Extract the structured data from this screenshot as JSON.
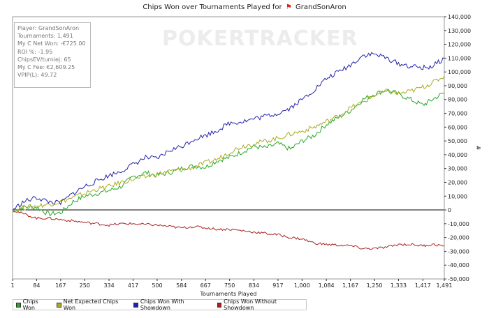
{
  "title": {
    "prefix": "Chips Won over Tournaments Played for",
    "flag": "⚑",
    "player": "GrandSonAron"
  },
  "watermark": "POKERTRACKER",
  "stats": {
    "player": "Player: GrandSonAron",
    "tournaments": "Tournaments: 1,491",
    "net_won": "My C Net Won: -€725.00",
    "roi": "ROI %: -1.95",
    "chips_ev": "ChipsEV/turniej: 65",
    "fee": "My C Fee: €2,609.25",
    "vpip": "VPIP(L): 49.72"
  },
  "legend": [
    {
      "label": "Chips Won",
      "color": "#22aa22"
    },
    {
      "label": "Net Expected Chips Won",
      "color": "#aaaa22"
    },
    {
      "label": "Chips Won With Showdown",
      "color": "#2222aa"
    },
    {
      "label": "Chips Won Without Showdown",
      "color": "#aa2222"
    }
  ],
  "chart_data": {
    "type": "line",
    "title": "Chips Won over Tournaments Played for GrandSonAron",
    "xlabel": "Tournaments Played",
    "ylabel": "#",
    "xlim": [
      1,
      1491
    ],
    "ylim": [
      -50000,
      140000
    ],
    "x_ticks": [
      1,
      84,
      167,
      250,
      334,
      417,
      500,
      584,
      667,
      750,
      834,
      917,
      1000,
      1084,
      1167,
      1250,
      1333,
      1417,
      1491
    ],
    "x_tick_labels": [
      "1",
      "84",
      "167",
      "250",
      "334",
      "417",
      "500",
      "584",
      "667",
      "750",
      "834",
      "917",
      "1,000",
      "1,084",
      "1,167",
      "1,250",
      "1,333",
      "1,417",
      "1,491"
    ],
    "y_ticks": [
      -50000,
      -40000,
      -30000,
      -20000,
      -10000,
      0,
      10000,
      20000,
      30000,
      40000,
      50000,
      60000,
      70000,
      80000,
      90000,
      100000,
      110000,
      120000,
      130000,
      140000
    ],
    "y_tick_labels": [
      "-50,000",
      "-40,000",
      "-30,000",
      "-20,000",
      "-10,000",
      "0",
      "10,000",
      "20,000",
      "30,000",
      "40,000",
      "50,000",
      "60,000",
      "70,000",
      "80,000",
      "90,000",
      "100,000",
      "110,000",
      "120,000",
      "130,000",
      "140,000"
    ],
    "grid": false,
    "legend_position": "bottom",
    "x": [
      1,
      40,
      84,
      125,
      167,
      210,
      250,
      292,
      334,
      375,
      417,
      460,
      500,
      542,
      584,
      625,
      667,
      710,
      750,
      792,
      834,
      875,
      917,
      960,
      1000,
      1042,
      1084,
      1125,
      1167,
      1210,
      1250,
      1292,
      1333,
      1375,
      1417,
      1450,
      1491
    ],
    "series": [
      {
        "name": "Chips Won",
        "color": "#22aa22",
        "values": [
          0,
          2000,
          2000,
          -3000,
          -2000,
          6000,
          10000,
          12000,
          14000,
          17000,
          24000,
          27000,
          25000,
          27000,
          30000,
          32000,
          31000,
          36000,
          38000,
          42000,
          46000,
          45000,
          48000,
          44000,
          50000,
          54000,
          62000,
          67000,
          72000,
          80000,
          84000,
          87000,
          84000,
          80000,
          76000,
          80000,
          85000
        ]
      },
      {
        "name": "Net Expected Chips Won",
        "color": "#aaaa22",
        "values": [
          0,
          1500,
          3000,
          4000,
          6000,
          9000,
          12000,
          15000,
          17000,
          20000,
          22000,
          24000,
          26000,
          28000,
          29000,
          31000,
          34000,
          37000,
          42000,
          46000,
          48000,
          50000,
          52000,
          55000,
          57000,
          60000,
          64000,
          68000,
          74000,
          78000,
          83000,
          86000,
          84000,
          86000,
          89000,
          92000,
          97000
        ]
      },
      {
        "name": "Chips Won With Showdown",
        "color": "#2222aa",
        "values": [
          0,
          6000,
          9000,
          6000,
          5000,
          12000,
          17000,
          21000,
          25000,
          28000,
          33000,
          38000,
          37000,
          43000,
          46000,
          51000,
          54000,
          58000,
          63000,
          64000,
          66000,
          68000,
          70000,
          74000,
          80000,
          87000,
          95000,
          100000,
          105000,
          112000,
          113000,
          110000,
          106000,
          104000,
          103000,
          104000,
          110000
        ]
      },
      {
        "name": "Chips Won Without Showdown",
        "color": "#aa2222",
        "values": [
          0,
          -3000,
          -6000,
          -6000,
          -7000,
          -8000,
          -9000,
          -10000,
          -11000,
          -10000,
          -10000,
          -10500,
          -11000,
          -12000,
          -13000,
          -12000,
          -13000,
          -14000,
          -14000,
          -15000,
          -16000,
          -17000,
          -18000,
          -20000,
          -21000,
          -24000,
          -25000,
          -25500,
          -26000,
          -28000,
          -28000,
          -27000,
          -25000,
          -25000,
          -26000,
          -25000,
          -26000
        ]
      }
    ]
  }
}
